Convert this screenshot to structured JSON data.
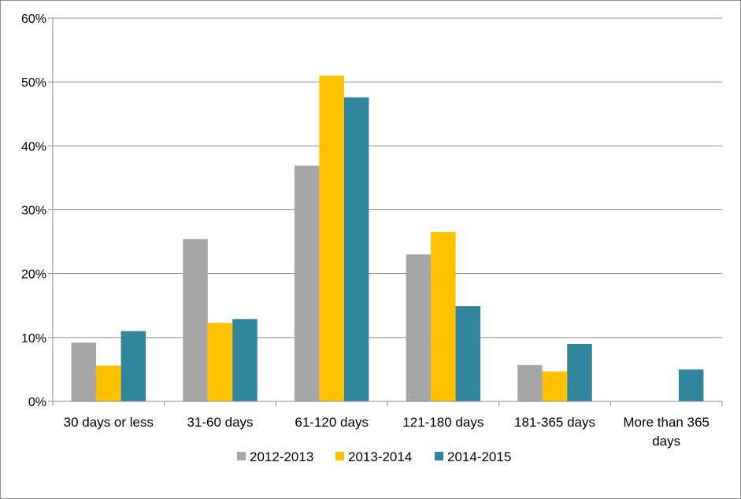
{
  "chart_data": {
    "type": "bar",
    "title": "",
    "xlabel": "",
    "ylabel": "",
    "ylim": [
      0,
      60
    ],
    "yticks": [
      0,
      10,
      20,
      30,
      40,
      50,
      60
    ],
    "ytick_labels": [
      "0%",
      "10%",
      "20%",
      "30%",
      "40%",
      "50%",
      "60%"
    ],
    "grid": true,
    "legend_position": "bottom",
    "categories": [
      [
        "30 days or less"
      ],
      [
        "31-60 days"
      ],
      [
        "61-120 days"
      ],
      [
        "121-180 days"
      ],
      [
        "181-365 days"
      ],
      [
        "More than 365",
        "days"
      ]
    ],
    "series": [
      {
        "name": "2012-2013",
        "color": "#a6a6a6",
        "values": [
          9.2,
          25.4,
          36.9,
          23.0,
          5.7,
          0
        ]
      },
      {
        "name": "2013-2014",
        "color": "#ffc000",
        "values": [
          5.6,
          12.3,
          51.0,
          26.5,
          4.7,
          0
        ]
      },
      {
        "name": "2014-2015",
        "color": "#31859c",
        "values": [
          11.0,
          12.9,
          47.6,
          14.9,
          9.0,
          5.0
        ]
      }
    ]
  }
}
